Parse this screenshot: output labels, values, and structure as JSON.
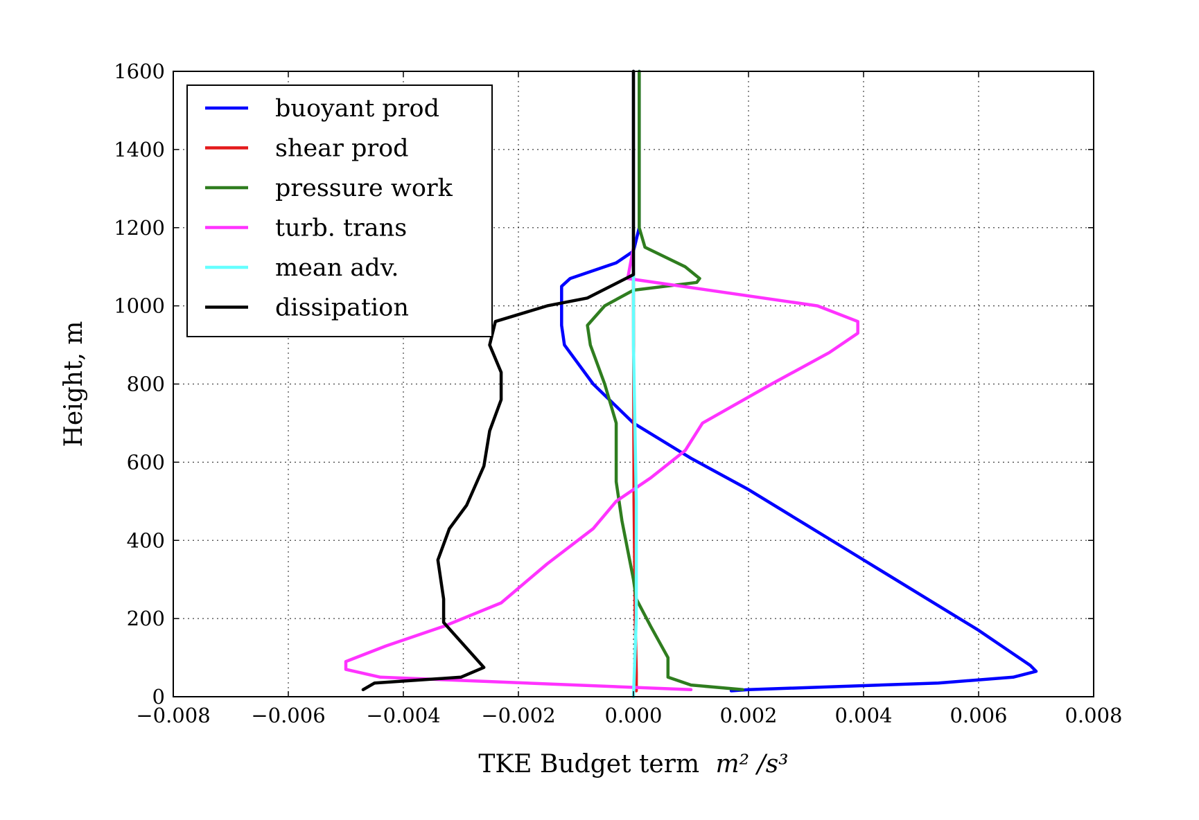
{
  "chart_data": {
    "type": "line",
    "title": "",
    "xlabel": "TKE Budget term",
    "xlabel_unit": "m² /s³",
    "ylabel": "Height, m",
    "xlim": [
      -0.008,
      0.008
    ],
    "ylim": [
      0,
      1600
    ],
    "grid": true,
    "legend_position": "top-left",
    "x_ticks": [
      {
        "value": -0.008,
        "label": "−0.008"
      },
      {
        "value": -0.006,
        "label": "−0.006"
      },
      {
        "value": -0.004,
        "label": "−0.004"
      },
      {
        "value": -0.002,
        "label": "−0.002"
      },
      {
        "value": 0.0,
        "label": "0.000"
      },
      {
        "value": 0.002,
        "label": "0.002"
      },
      {
        "value": 0.004,
        "label": "0.004"
      },
      {
        "value": 0.006,
        "label": "0.006"
      },
      {
        "value": 0.008,
        "label": "0.008"
      }
    ],
    "y_ticks": [
      {
        "value": 0,
        "label": "0"
      },
      {
        "value": 200,
        "label": "200"
      },
      {
        "value": 400,
        "label": "400"
      },
      {
        "value": 600,
        "label": "600"
      },
      {
        "value": 800,
        "label": "800"
      },
      {
        "value": 1000,
        "label": "1000"
      },
      {
        "value": 1200,
        "label": "1200"
      },
      {
        "value": 1400,
        "label": "1400"
      },
      {
        "value": 1600,
        "label": "1600"
      }
    ],
    "series": [
      {
        "name": "buoyant prod",
        "color": "#0000ff",
        "points": [
          [
            0.0017,
            15
          ],
          [
            0.002,
            18
          ],
          [
            0.0053,
            35
          ],
          [
            0.0066,
            50
          ],
          [
            0.007,
            65
          ],
          [
            0.0069,
            80
          ],
          [
            0.0065,
            120
          ],
          [
            0.006,
            170
          ],
          [
            0.005,
            260
          ],
          [
            0.004,
            350
          ],
          [
            0.003,
            440
          ],
          [
            0.002,
            530
          ],
          [
            0.001,
            610
          ],
          [
            0.0,
            700
          ],
          [
            -0.0007,
            800
          ],
          [
            -0.0012,
            900
          ],
          [
            -0.00125,
            950
          ],
          [
            -0.00125,
            1050
          ],
          [
            -0.0011,
            1070
          ],
          [
            -0.0003,
            1110
          ],
          [
            0.0,
            1140
          ],
          [
            0.0001,
            1200
          ],
          [
            0.0001,
            1400
          ],
          [
            0.0001,
            1600
          ]
        ]
      },
      {
        "name": "shear prod",
        "color": "#e41a1c",
        "points": [
          [
            5e-05,
            15
          ],
          [
            5e-05,
            60
          ],
          [
            3e-05,
            200
          ],
          [
            1e-05,
            500
          ],
          [
            0.0,
            1000
          ],
          [
            0.0,
            1600
          ]
        ]
      },
      {
        "name": "pressure work",
        "color": "#2f7d1f",
        "points": [
          [
            0.0019,
            18
          ],
          [
            0.001,
            30
          ],
          [
            0.0006,
            50
          ],
          [
            0.0006,
            100
          ],
          [
            0.0003,
            180
          ],
          [
            5e-05,
            250
          ],
          [
            0.0,
            300
          ],
          [
            -0.0002,
            450
          ],
          [
            -0.0003,
            550
          ],
          [
            -0.0003,
            700
          ],
          [
            -0.0005,
            800
          ],
          [
            -0.00075,
            900
          ],
          [
            -0.0008,
            950
          ],
          [
            -0.0005,
            1000
          ],
          [
            0.0,
            1040
          ],
          [
            0.0011,
            1060
          ],
          [
            0.00115,
            1070
          ],
          [
            0.0009,
            1100
          ],
          [
            0.0002,
            1150
          ],
          [
            0.0001,
            1200
          ],
          [
            0.0001,
            1400
          ],
          [
            0.0001,
            1600
          ]
        ]
      },
      {
        "name": "turb. trans",
        "color": "#ff33ff",
        "points": [
          [
            0.001,
            18
          ],
          [
            -0.0044,
            50
          ],
          [
            -0.005,
            70
          ],
          [
            -0.005,
            90
          ],
          [
            -0.0043,
            130
          ],
          [
            -0.0033,
            180
          ],
          [
            -0.0023,
            240
          ],
          [
            -0.0015,
            340
          ],
          [
            -0.0007,
            430
          ],
          [
            -0.0003,
            500
          ],
          [
            0.0003,
            560
          ],
          [
            0.0009,
            630
          ],
          [
            0.0012,
            700
          ],
          [
            0.0024,
            800
          ],
          [
            0.0034,
            880
          ],
          [
            0.0039,
            930
          ],
          [
            0.0039,
            960
          ],
          [
            0.0032,
            1000
          ],
          [
            -0.0001,
            1070
          ],
          [
            0.0,
            1150
          ],
          [
            0.0,
            1600
          ]
        ]
      },
      {
        "name": "mean adv.",
        "color": "#66ffff",
        "points": [
          [
            0.0,
            0
          ],
          [
            5e-05,
            200
          ],
          [
            5e-05,
            500
          ],
          [
            0.0,
            900
          ],
          [
            0.0,
            1600
          ]
        ]
      },
      {
        "name": "dissipation",
        "color": "#000000",
        "points": [
          [
            -0.0047,
            18
          ],
          [
            -0.0045,
            35
          ],
          [
            -0.003,
            50
          ],
          [
            -0.0026,
            75
          ],
          [
            -0.0033,
            190
          ],
          [
            -0.0033,
            250
          ],
          [
            -0.0034,
            350
          ],
          [
            -0.0032,
            430
          ],
          [
            -0.0029,
            490
          ],
          [
            -0.0026,
            590
          ],
          [
            -0.0025,
            680
          ],
          [
            -0.0023,
            760
          ],
          [
            -0.0023,
            830
          ],
          [
            -0.0025,
            900
          ],
          [
            -0.0024,
            960
          ],
          [
            -0.0015,
            1000
          ],
          [
            -0.0008,
            1020
          ],
          [
            0.0,
            1080
          ],
          [
            0.0,
            1200
          ],
          [
            0.0,
            1400
          ],
          [
            0.0,
            1600
          ]
        ]
      }
    ]
  }
}
